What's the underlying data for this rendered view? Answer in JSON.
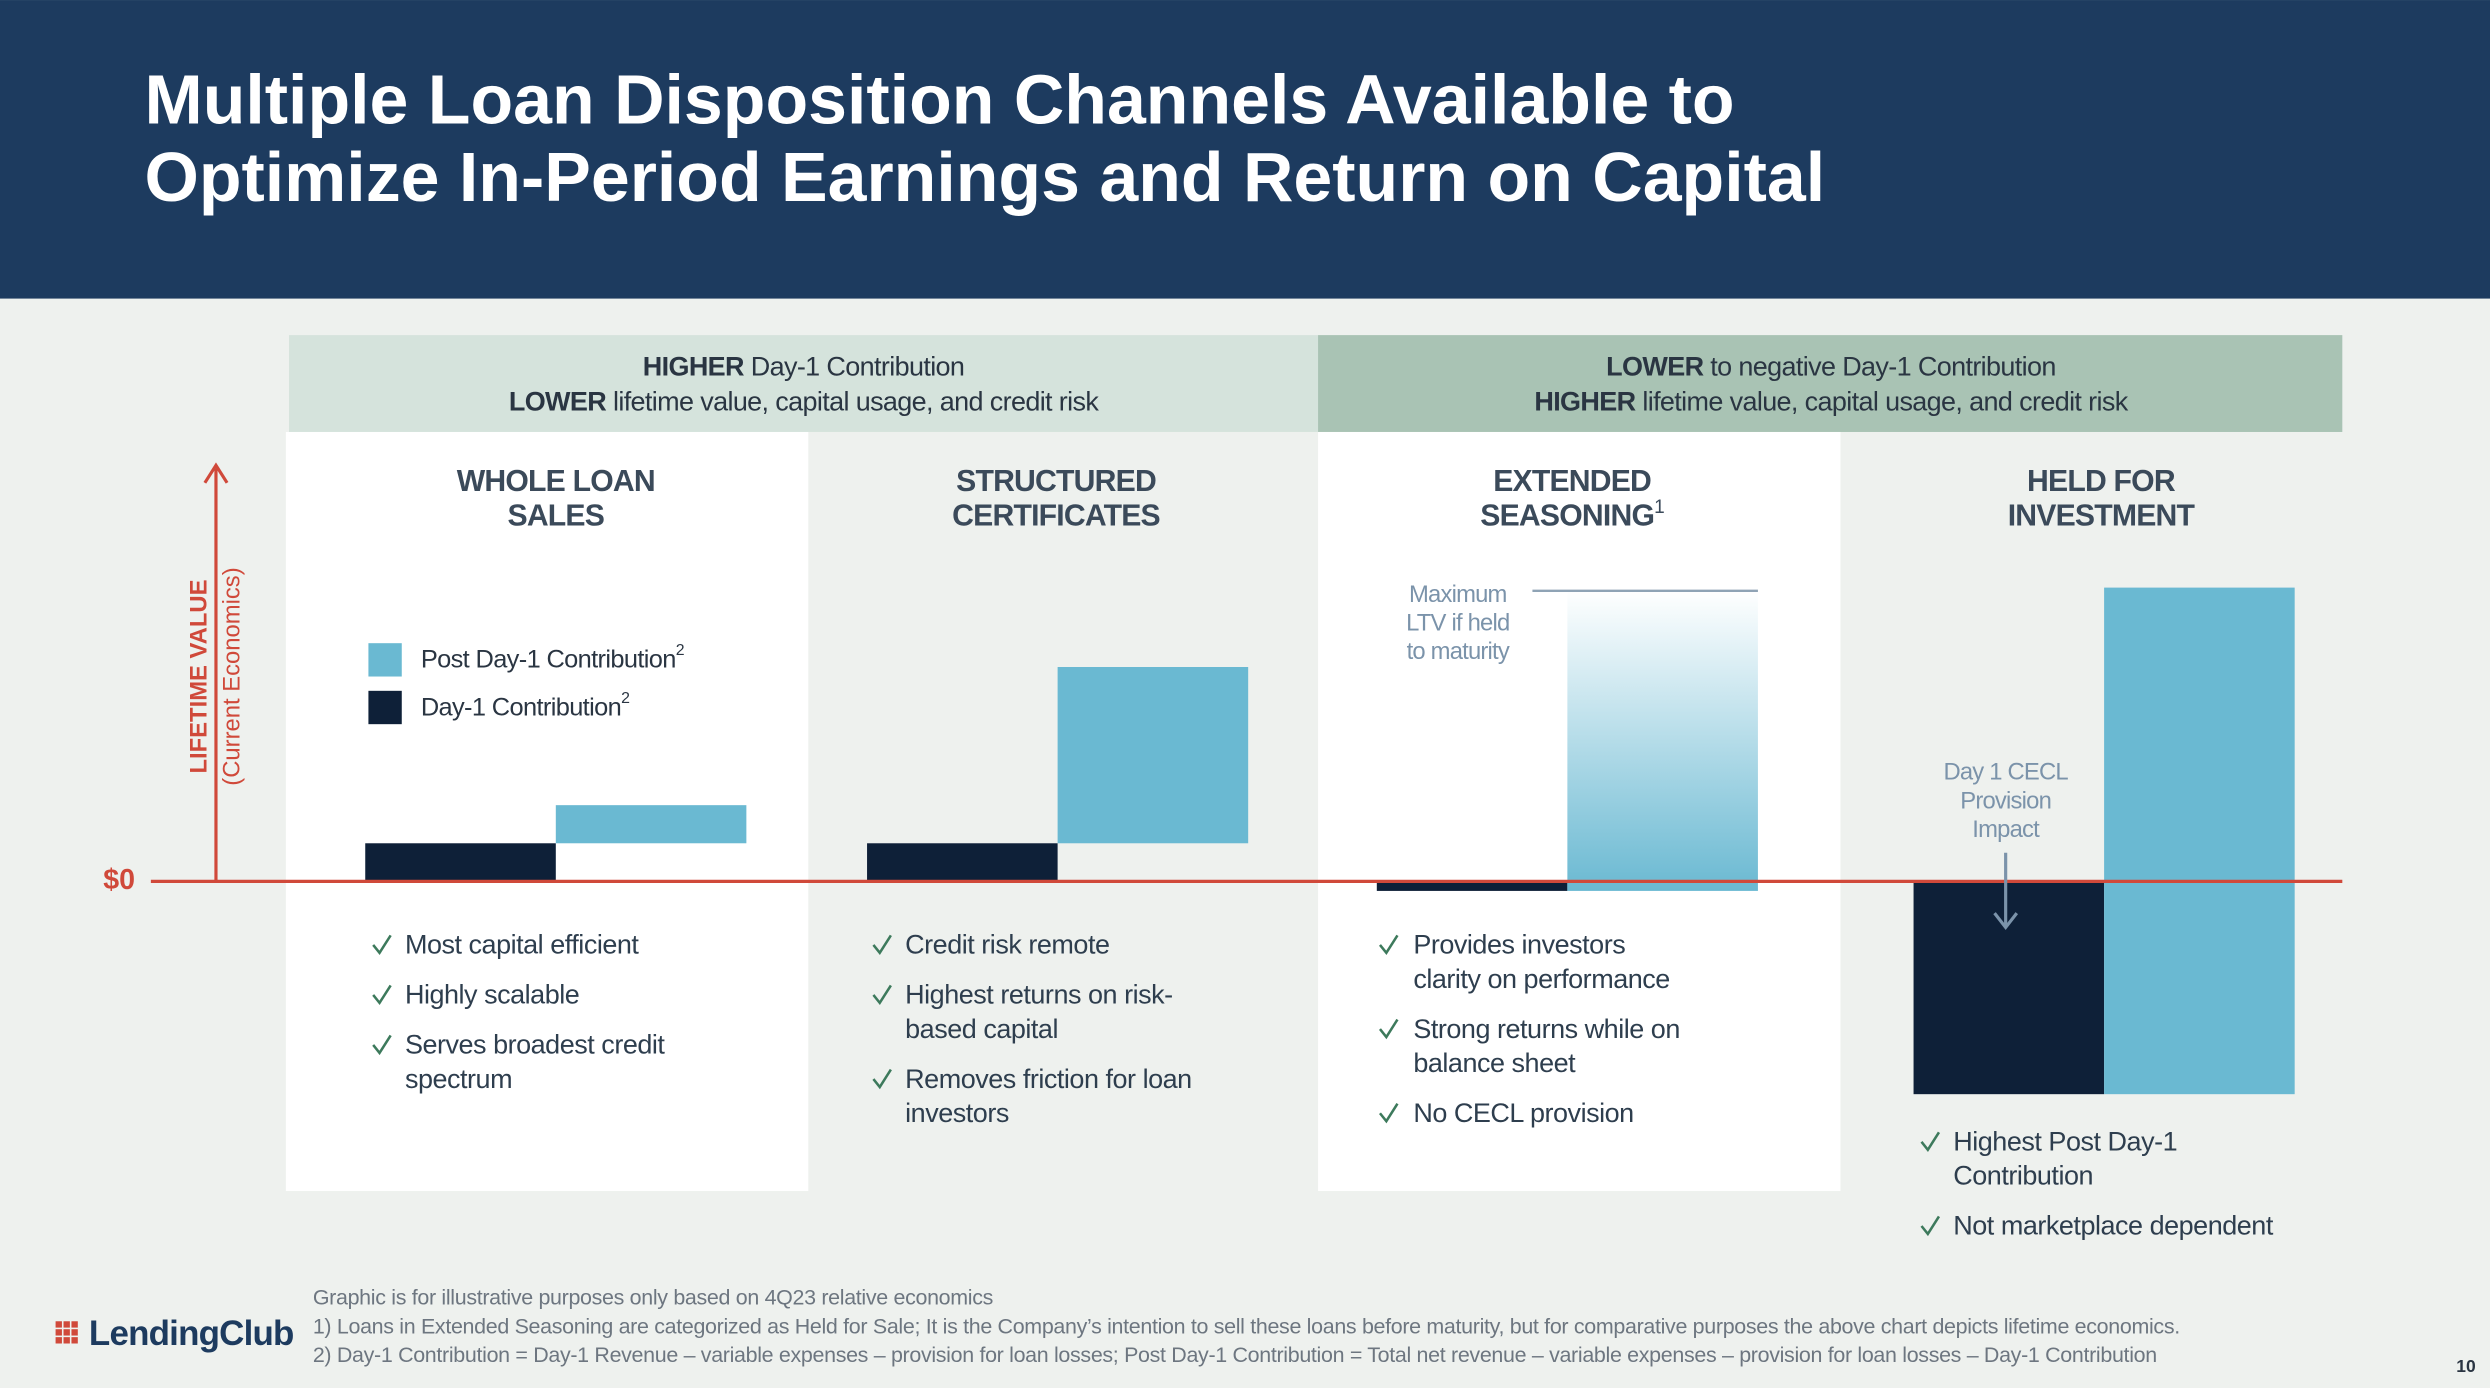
{
  "title": [
    "Multiple Loan Disposition Channels Available to",
    "Optimize In-Period Earnings and Return on Capital"
  ],
  "bands": [
    {
      "lines": [
        {
          "strong": "HIGHER",
          "rest": " Day-1 Contribution"
        },
        {
          "strong": "LOWER",
          "rest": " lifetime value, capital usage, and credit risk"
        }
      ]
    },
    {
      "lines": [
        {
          "strong": "LOWER",
          "rest": " to negative Day-1 Contribution"
        },
        {
          "strong": "HIGHER",
          "rest": " lifetime value, capital usage, and credit risk"
        }
      ]
    }
  ],
  "axis": {
    "label": "LIFETIME VALUE",
    "sublabel": "(Current Economics)",
    "zero": "$0"
  },
  "legend": [
    {
      "label": "Post Day-1 Contribution",
      "sup": "2"
    },
    {
      "label": "Day-1 Contribution",
      "sup": "2"
    }
  ],
  "channels": [
    {
      "title": [
        "WHOLE LOAN",
        "SALES"
      ],
      "bullets": [
        [
          "Most capital efficient"
        ],
        [
          "Highly scalable"
        ],
        [
          "Serves broadest credit",
          "spectrum"
        ]
      ]
    },
    {
      "title": [
        "STRUCTURED",
        "CERTIFICATES"
      ],
      "bullets": [
        [
          "Credit risk remote"
        ],
        [
          "Highest returns on risk-",
          "based capital"
        ],
        [
          "Removes friction for loan",
          "investors"
        ]
      ]
    },
    {
      "title": [
        "EXTENDED",
        "SEASONING"
      ],
      "title_sup": "1",
      "bullets": [
        [
          "Provides investors",
          "clarity on performance"
        ],
        [
          "Strong returns while on",
          "balance sheet"
        ],
        [
          "No CECL provision"
        ]
      ]
    },
    {
      "title": [
        "HELD FOR",
        "INVESTMENT"
      ],
      "bullets": [
        [
          "Highest Post Day-1",
          "Contribution"
        ],
        [
          "Not marketplace dependent"
        ]
      ]
    }
  ],
  "annotations": [
    [
      "Maximum",
      "LTV if held",
      "to maturity"
    ],
    [
      "Day 1 CECL",
      "Provision",
      "Impact"
    ]
  ],
  "footnotes": [
    "Graphic is for illustrative purposes only based on 4Q23 relative economics",
    "1)  Loans in Extended Seasoning are categorized as Held for Sale; It is the Company’s intention to sell these loans before maturity, but for comparative purposes the above chart depicts lifetime economics.",
    "2)  Day-1 Contribution = Day-1 Revenue – variable expenses – provision for loan losses; Post Day-1 Contribution = Total net revenue – variable expenses – provision for loan losses – Day-1 Contribution"
  ],
  "logo": "LendingClub",
  "page_number": "10"
}
